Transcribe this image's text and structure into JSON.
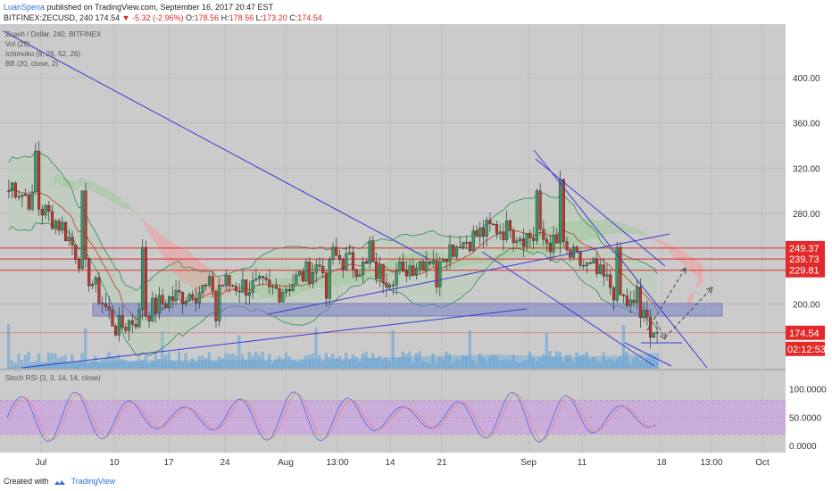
{
  "header": {
    "author": "LuanSpena",
    "published_text": "published on TradingView.com, September 16, 2017 20:47 EST",
    "symbol": "BITFINEX:ZECUSD, 240",
    "last": "174.54",
    "change": "▼ -5.32 (-2.96%)",
    "o_label": "O:",
    "o_value": "178.56",
    "h_label": "H:",
    "h_value": "178.56",
    "l_label": "L:",
    "l_value": "173.20",
    "c_label": "C:",
    "c_value": "174.54"
  },
  "legend": {
    "title": "Zcash / Dollar, 240, BITFINEX",
    "vol": "Vol (20)",
    "ichimoku": "Ichimoku (9, 26, 52, 26)",
    "bb": "BB (20, close, 2)",
    "stoch": "Stoch RSI (3, 3, 14, 14, close)"
  },
  "footer": {
    "created_with": "Created with",
    "brand": "TradingView"
  },
  "colors": {
    "pane_bg": "#cbcbcb",
    "grid": "#bcbcbc",
    "trendline": "#3b3bd4",
    "resistance": "#e32a2a",
    "kumo_bear": "#e8a7a7",
    "kumo_bull": "#a8c9a4",
    "bollinger": "#2e8b57",
    "support_zone": "#8a92c4",
    "volume": "#5aa0d8",
    "stoch_band": "#c9a3e0",
    "k_line": "#5a6fe0",
    "d_line": "#e48a8a",
    "price_label": "#e32a2a"
  },
  "chart_data": [
    {
      "type": "candlestick",
      "title": "Zcash / Dollar, 240, BITFINEX",
      "x_ticks": [
        "Jul",
        "10",
        "17",
        "24",
        "Aug",
        "13:00",
        "14",
        "21",
        "Sep",
        "11",
        "18",
        "13:00",
        "Oct"
      ],
      "y_ticks": [
        "400.00",
        "360.00",
        "320.00",
        "280.00",
        "200.00"
      ],
      "ylim": [
        100,
        415
      ],
      "series": [
        {
          "name": "ZECUSD",
          "dates": [
            "Jun 26",
            "Jul 3",
            "Jul 10",
            "Jul 17",
            "Jul 24",
            "Jul 31",
            "Aug 7",
            "Aug 14",
            "Aug 21",
            "Aug 28",
            "Sep 4",
            "Sep 11",
            "Sep 16"
          ],
          "close": [
            308,
            268,
            178,
            205,
            218,
            212,
            242,
            225,
            246,
            268,
            255,
            222,
            174.54
          ]
        }
      ],
      "price_levels": [
        "249.37",
        "239.73",
        "229.81"
      ],
      "last_price": "174.54",
      "countdown": "02:12:53",
      "annotations": [
        "Support zone ~180",
        "Descending trendlines",
        "Ascending trendline",
        "Projected breakout arrows"
      ],
      "grid": true
    },
    {
      "type": "line",
      "title": "Stoch RSI (3, 3, 14, 14, close)",
      "y_ticks": [
        "100.0000",
        "50.0000",
        "0.0000"
      ],
      "ylim": [
        0,
        100
      ],
      "band": [
        20,
        80
      ],
      "grid": true
    }
  ]
}
